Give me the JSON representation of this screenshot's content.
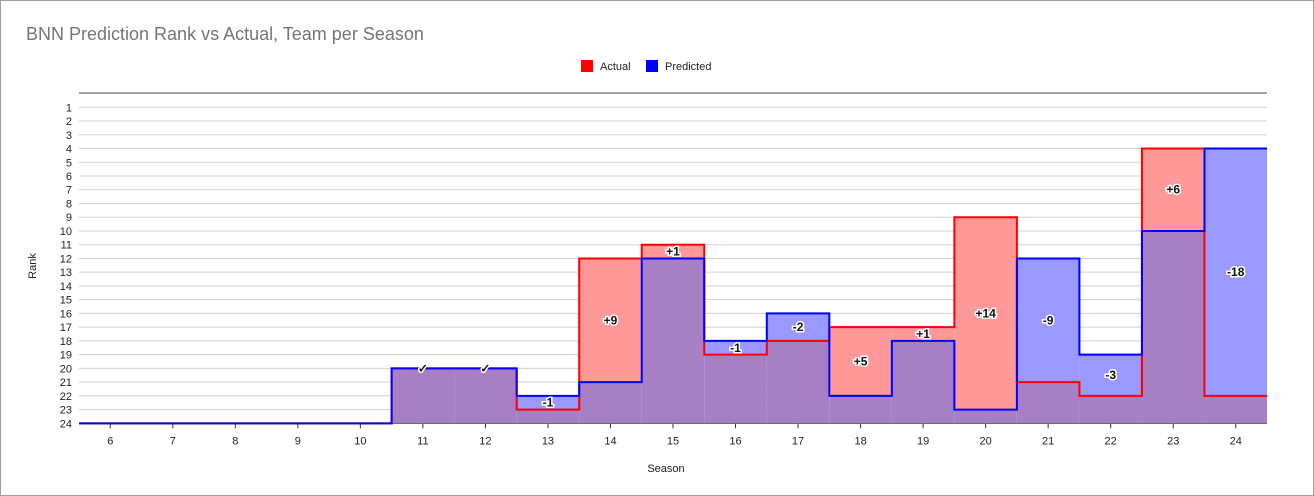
{
  "title": "BNN Prediction Rank vs Actual, Team per Season",
  "colors": {
    "actual": "#ff0000",
    "predicted": "#0000ff",
    "actual_fill": "#ff9999",
    "predicted_fill": "#9999ff",
    "overlap_fill": "#a67fc4"
  },
  "chart_data": {
    "type": "area",
    "xlabel": "Season",
    "ylabel": "Rank",
    "x": [
      6,
      7,
      8,
      9,
      10,
      11,
      12,
      13,
      14,
      15,
      16,
      17,
      18,
      19,
      20,
      21,
      22,
      23,
      24
    ],
    "ylim": [
      1,
      24
    ],
    "y_inverted": true,
    "y_ticks": [
      "1",
      "2",
      "3",
      "4",
      "5",
      "6",
      "7",
      "8",
      "9",
      "10",
      "11",
      "12",
      "13",
      "14",
      "15",
      "16",
      "17",
      "18",
      "19",
      "20",
      "21",
      "22",
      "23",
      "24"
    ],
    "step": true,
    "legend": "top-center",
    "grid": true,
    "series": [
      {
        "name": "Actual",
        "values": [
          24,
          24,
          24,
          24,
          24,
          20,
          20,
          23,
          12,
          11,
          19,
          18,
          17,
          17,
          9,
          21,
          22,
          4,
          22
        ]
      },
      {
        "name": "Predicted",
        "values": [
          24,
          24,
          24,
          24,
          24,
          20,
          20,
          22,
          21,
          12,
          18,
          16,
          22,
          18,
          23,
          12,
          19,
          10,
          4
        ]
      }
    ],
    "annotations": [
      {
        "x": 11,
        "text": "✓",
        "y": 20
      },
      {
        "x": 12,
        "text": "✓",
        "y": 20
      },
      {
        "x": 13,
        "text": "-1",
        "y": 22.5
      },
      {
        "x": 14,
        "text": "+9",
        "y": 16.5
      },
      {
        "x": 15,
        "text": "+1",
        "y": 11.5
      },
      {
        "x": 16,
        "text": "-1",
        "y": 18.5
      },
      {
        "x": 17,
        "text": "-2",
        "y": 17
      },
      {
        "x": 18,
        "text": "+5",
        "y": 19.5
      },
      {
        "x": 19,
        "text": "+1",
        "y": 17.5
      },
      {
        "x": 20,
        "text": "+14",
        "y": 16
      },
      {
        "x": 21,
        "text": "-9",
        "y": 16.5
      },
      {
        "x": 22,
        "text": "-3",
        "y": 20.5
      },
      {
        "x": 23,
        "text": "+6",
        "y": 7
      },
      {
        "x": 24,
        "text": "-18",
        "y": 13
      }
    ]
  }
}
